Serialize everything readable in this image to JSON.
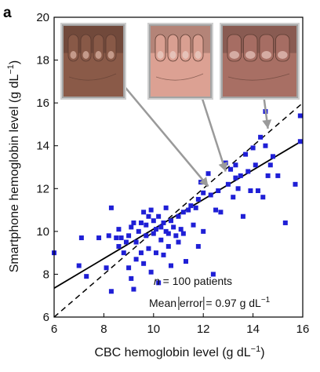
{
  "panel_label": "a",
  "photos": [
    {
      "name": "hand-photo-1",
      "skin": "#8a5a48",
      "nail": "#c49a8a"
    },
    {
      "name": "hand-photo-2",
      "skin": "#dca193",
      "nail": "#e6c2b8"
    },
    {
      "name": "hand-photo-3",
      "skin": "#a86f64",
      "nail": "#d5aca3"
    }
  ],
  "chart_data": {
    "type": "scatter",
    "xlabel": "CBC hemoglobin level (g dL",
    "xlabel_sup": "−1",
    "xlabel_end": ")",
    "ylabel": "Smartphone hemoglobin level (g dL",
    "ylabel_sup": "−1",
    "ylabel_end": ")",
    "xlim": [
      6,
      16
    ],
    "ylim": [
      6,
      20
    ],
    "xticks": [
      6,
      8,
      10,
      12,
      14,
      16
    ],
    "yticks": [
      6,
      8,
      10,
      12,
      14,
      16,
      18,
      20
    ],
    "grid": false,
    "marker_color": "#1f1fd6",
    "annotation_n_value": "n",
    "annotation_n_rest": " = 100 patients",
    "annotation_error_pre": "Mean ",
    "annotation_error_mid": "error",
    "annotation_error_post": " = 0.97 g dL",
    "annotation_error_sup": "−1",
    "fit_line": {
      "style": "solid",
      "x": [
        6,
        16
      ],
      "y": [
        7.35,
        14.25
      ]
    },
    "identity_line": {
      "style": "dashed",
      "x": [
        6,
        16
      ],
      "y": [
        6,
        16
      ]
    },
    "arrows": [
      {
        "from": [
          8.3,
          17.5
        ],
        "to": [
          12.2,
          12.1
        ]
      },
      {
        "from": [
          11.6,
          17.5
        ],
        "to": [
          12.9,
          12.8
        ]
      },
      {
        "from": [
          14.3,
          17.5
        ],
        "to": [
          14.6,
          14.8
        ]
      }
    ],
    "points": [
      [
        6.0,
        9.0
      ],
      [
        7.0,
        8.4
      ],
      [
        7.1,
        9.7
      ],
      [
        7.3,
        7.9
      ],
      [
        7.8,
        9.7
      ],
      [
        8.1,
        8.3
      ],
      [
        8.2,
        9.8
      ],
      [
        8.3,
        7.2
      ],
      [
        8.3,
        11.1
      ],
      [
        8.5,
        9.7
      ],
      [
        8.6,
        9.3
      ],
      [
        8.7,
        9.7
      ],
      [
        8.8,
        9.0
      ],
      [
        8.9,
        9.5
      ],
      [
        8.6,
        10.1
      ],
      [
        9.0,
        8.3
      ],
      [
        9.0,
        9.8
      ],
      [
        9.1,
        10.2
      ],
      [
        9.1,
        7.8
      ],
      [
        9.2,
        7.3
      ],
      [
        9.2,
        10.4
      ],
      [
        9.3,
        8.7
      ],
      [
        9.3,
        9.5
      ],
      [
        9.4,
        10.0
      ],
      [
        9.5,
        9.0
      ],
      [
        9.5,
        10.4
      ],
      [
        9.6,
        10.9
      ],
      [
        9.6,
        8.5
      ],
      [
        9.7,
        9.8
      ],
      [
        9.7,
        10.3
      ],
      [
        9.8,
        9.2
      ],
      [
        9.8,
        10.7
      ],
      [
        9.9,
        11.0
      ],
      [
        9.9,
        8.1
      ],
      [
        10.0,
        9.9
      ],
      [
        10.0,
        10.5
      ],
      [
        10.1,
        9.0
      ],
      [
        10.1,
        10.1
      ],
      [
        10.2,
        7.6
      ],
      [
        10.2,
        10.7
      ],
      [
        10.3,
        9.6
      ],
      [
        10.3,
        10.2
      ],
      [
        10.4,
        10.4
      ],
      [
        10.4,
        8.9
      ],
      [
        10.5,
        11.1
      ],
      [
        10.5,
        10.0
      ],
      [
        10.6,
        9.3
      ],
      [
        10.6,
        9.9
      ],
      [
        10.7,
        8.4
      ],
      [
        10.7,
        10.5
      ],
      [
        10.8,
        10.2
      ],
      [
        10.9,
        9.8
      ],
      [
        11.0,
        9.5
      ],
      [
        11.0,
        10.7
      ],
      [
        11.1,
        10.1
      ],
      [
        11.2,
        10.9
      ],
      [
        11.2,
        9.9
      ],
      [
        11.3,
        8.6
      ],
      [
        11.4,
        11.0
      ],
      [
        11.5,
        11.2
      ],
      [
        11.6,
        10.3
      ],
      [
        11.7,
        11.1
      ],
      [
        11.8,
        11.5
      ],
      [
        11.8,
        9.3
      ],
      [
        11.9,
        12.3
      ],
      [
        12.0,
        10.0
      ],
      [
        12.0,
        11.8
      ],
      [
        12.2,
        12.7
      ],
      [
        12.3,
        11.7
      ],
      [
        12.4,
        8.0
      ],
      [
        12.5,
        11.0
      ],
      [
        12.6,
        11.9
      ],
      [
        12.7,
        10.9
      ],
      [
        12.9,
        13.2
      ],
      [
        13.0,
        12.2
      ],
      [
        13.1,
        12.9
      ],
      [
        13.2,
        11.6
      ],
      [
        13.3,
        13.1
      ],
      [
        13.3,
        12.5
      ],
      [
        13.4,
        12.0
      ],
      [
        13.5,
        12.6
      ],
      [
        13.6,
        10.7
      ],
      [
        13.7,
        13.6
      ],
      [
        13.8,
        12.8
      ],
      [
        13.9,
        11.9
      ],
      [
        14.0,
        13.9
      ],
      [
        14.1,
        13.1
      ],
      [
        14.2,
        11.9
      ],
      [
        14.3,
        14.4
      ],
      [
        14.4,
        11.6
      ],
      [
        14.5,
        14.0
      ],
      [
        14.5,
        15.6
      ],
      [
        14.6,
        12.6
      ],
      [
        14.7,
        13.1
      ],
      [
        14.8,
        13.5
      ],
      [
        15.0,
        12.6
      ],
      [
        15.3,
        10.4
      ],
      [
        15.7,
        12.2
      ],
      [
        15.9,
        15.4
      ],
      [
        15.9,
        14.2
      ]
    ]
  }
}
